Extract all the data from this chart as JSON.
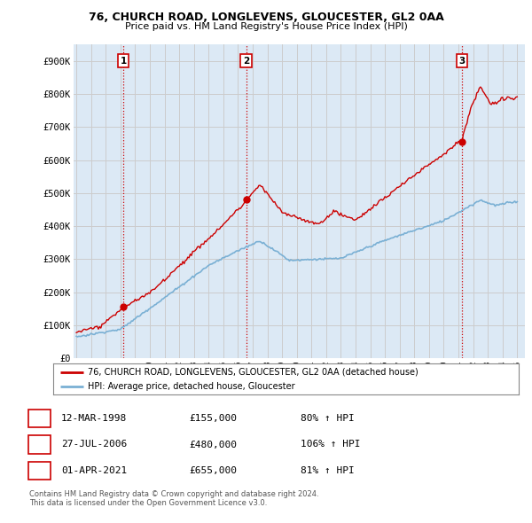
{
  "title1": "76, CHURCH ROAD, LONGLEVENS, GLOUCESTER, GL2 0AA",
  "title2": "Price paid vs. HM Land Registry's House Price Index (HPI)",
  "ylabel_ticks": [
    "£0",
    "£100K",
    "£200K",
    "£300K",
    "£400K",
    "£500K",
    "£600K",
    "£700K",
    "£800K",
    "£900K"
  ],
  "ytick_vals": [
    0,
    100000,
    200000,
    300000,
    400000,
    500000,
    600000,
    700000,
    800000,
    900000
  ],
  "xlim": [
    1994.8,
    2025.5
  ],
  "ylim": [
    0,
    950000
  ],
  "grid_color": "#cccccc",
  "bg_color": "#dce9f5",
  "red_color": "#cc0000",
  "blue_color": "#7ab0d4",
  "sale_dates": [
    1998.19,
    2006.56,
    2021.25
  ],
  "sale_prices": [
    155000,
    480000,
    655000
  ],
  "sale_labels": [
    "1",
    "2",
    "3"
  ],
  "legend_line1": "76, CHURCH ROAD, LONGLEVENS, GLOUCESTER, GL2 0AA (detached house)",
  "legend_line2": "HPI: Average price, detached house, Gloucester",
  "table_data": [
    [
      "1",
      "12-MAR-1998",
      "£155,000",
      "80% ↑ HPI"
    ],
    [
      "2",
      "27-JUL-2006",
      "£480,000",
      "106% ↑ HPI"
    ],
    [
      "3",
      "01-APR-2021",
      "£655,000",
      "81% ↑ HPI"
    ]
  ],
  "footnote1": "Contains HM Land Registry data © Crown copyright and database right 2024.",
  "footnote2": "This data is licensed under the Open Government Licence v3.0.",
  "xtick_years": [
    1995,
    1996,
    1997,
    1998,
    1999,
    2000,
    2001,
    2002,
    2003,
    2004,
    2005,
    2006,
    2007,
    2008,
    2009,
    2010,
    2011,
    2012,
    2013,
    2014,
    2015,
    2016,
    2017,
    2018,
    2019,
    2020,
    2021,
    2022,
    2023,
    2024,
    2025
  ]
}
